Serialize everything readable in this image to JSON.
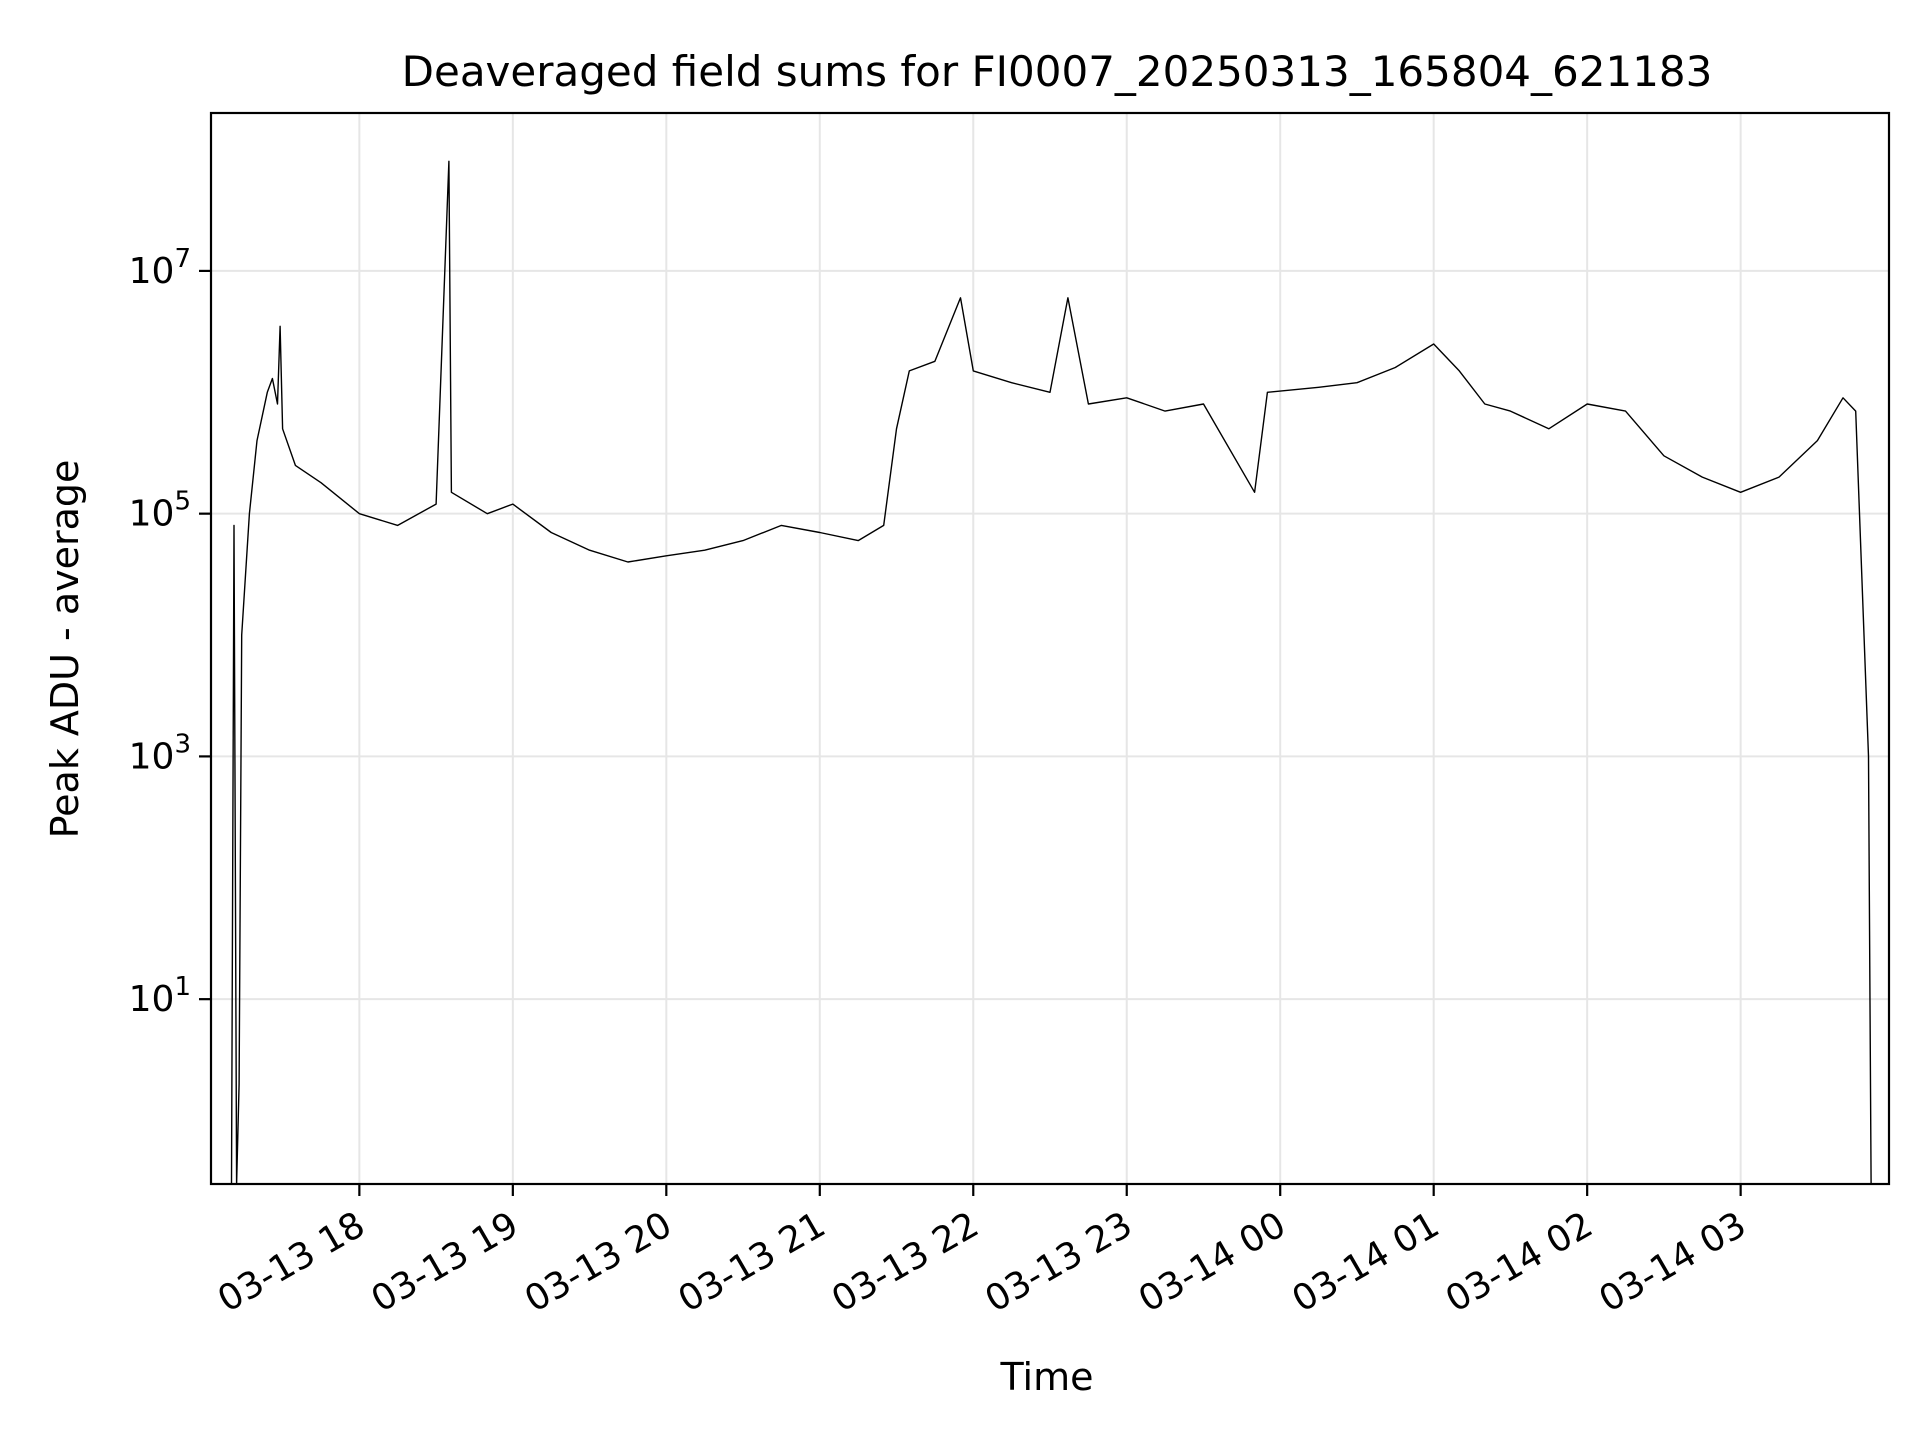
{
  "chart_data": {
    "type": "line",
    "title": "Deaveraged field sums for FI0007_20250313_165804_621183",
    "xlabel": "Time",
    "ylabel": "Peak ADU - average",
    "yscale": "log",
    "ylim": [
      0.3,
      200000000.0
    ],
    "xlim": [
      "2025-03-13 17:02",
      "2025-03-14 03:58"
    ],
    "grid": true,
    "x_ticks": [
      "03-13 18",
      "03-13 19",
      "03-13 20",
      "03-13 21",
      "03-13 22",
      "03-13 23",
      "03-14 00",
      "03-14 01",
      "03-14 02",
      "03-14 03"
    ],
    "y_ticks": [
      {
        "value": 10,
        "base": "10",
        "exp": "1"
      },
      {
        "value": 1000,
        "base": "10",
        "exp": "3"
      },
      {
        "value": 100000,
        "base": "10",
        "exp": "5"
      },
      {
        "value": 10000000,
        "base": "10",
        "exp": "7"
      }
    ],
    "series": [
      {
        "color": "#000000",
        "points": [
          [
            "2025-03-13 17:10",
            0.3
          ],
          [
            "2025-03-13 17:11",
            80000
          ],
          [
            "2025-03-13 17:12",
            0.3
          ],
          [
            "2025-03-13 17:13",
            2
          ],
          [
            "2025-03-13 17:14",
            10000
          ],
          [
            "2025-03-13 17:17",
            100000
          ],
          [
            "2025-03-13 17:20",
            400000
          ],
          [
            "2025-03-13 17:24",
            1000000
          ],
          [
            "2025-03-13 17:26",
            1300000
          ],
          [
            "2025-03-13 17:28",
            800000
          ],
          [
            "2025-03-13 17:29",
            3500000
          ],
          [
            "2025-03-13 17:30",
            500000
          ],
          [
            "2025-03-13 17:35",
            250000
          ],
          [
            "2025-03-13 17:45",
            180000
          ],
          [
            "2025-03-13 18:00",
            100000
          ],
          [
            "2025-03-13 18:15",
            80000
          ],
          [
            "2025-03-13 18:30",
            120000
          ],
          [
            "2025-03-13 18:35",
            80000000
          ],
          [
            "2025-03-13 18:36",
            150000
          ],
          [
            "2025-03-13 18:50",
            100000
          ],
          [
            "2025-03-13 19:00",
            120000
          ],
          [
            "2025-03-13 19:15",
            70000
          ],
          [
            "2025-03-13 19:30",
            50000
          ],
          [
            "2025-03-13 19:45",
            40000
          ],
          [
            "2025-03-13 20:00",
            45000
          ],
          [
            "2025-03-13 20:15",
            50000
          ],
          [
            "2025-03-13 20:30",
            60000
          ],
          [
            "2025-03-13 20:45",
            80000
          ],
          [
            "2025-03-13 21:00",
            70000
          ],
          [
            "2025-03-13 21:15",
            60000
          ],
          [
            "2025-03-13 21:25",
            80000
          ],
          [
            "2025-03-13 21:30",
            500000
          ],
          [
            "2025-03-13 21:35",
            1500000
          ],
          [
            "2025-03-13 21:45",
            1800000
          ],
          [
            "2025-03-13 21:55",
            6000000
          ],
          [
            "2025-03-13 22:00",
            1500000
          ],
          [
            "2025-03-13 22:15",
            1200000
          ],
          [
            "2025-03-13 22:30",
            1000000
          ],
          [
            "2025-03-13 22:37",
            6000000
          ],
          [
            "2025-03-13 22:45",
            800000
          ],
          [
            "2025-03-13 23:00",
            900000
          ],
          [
            "2025-03-13 23:15",
            700000
          ],
          [
            "2025-03-13 23:30",
            800000
          ],
          [
            "2025-03-13 23:50",
            150000
          ],
          [
            "2025-03-13 23:55",
            1000000
          ],
          [
            "2025-03-14 00:15",
            1100000
          ],
          [
            "2025-03-14 00:30",
            1200000
          ],
          [
            "2025-03-14 00:45",
            1600000
          ],
          [
            "2025-03-14 01:00",
            2500000
          ],
          [
            "2025-03-14 01:10",
            1500000
          ],
          [
            "2025-03-14 01:20",
            800000
          ],
          [
            "2025-03-14 01:30",
            700000
          ],
          [
            "2025-03-14 01:45",
            500000
          ],
          [
            "2025-03-14 02:00",
            800000
          ],
          [
            "2025-03-14 02:15",
            700000
          ],
          [
            "2025-03-14 02:30",
            300000
          ],
          [
            "2025-03-14 02:45",
            200000
          ],
          [
            "2025-03-14 03:00",
            150000
          ],
          [
            "2025-03-14 03:15",
            200000
          ],
          [
            "2025-03-14 03:30",
            400000
          ],
          [
            "2025-03-14 03:40",
            900000
          ],
          [
            "2025-03-14 03:45",
            700000
          ],
          [
            "2025-03-14 03:50",
            1000
          ],
          [
            "2025-03-14 03:51",
            0.3
          ]
        ]
      }
    ]
  }
}
